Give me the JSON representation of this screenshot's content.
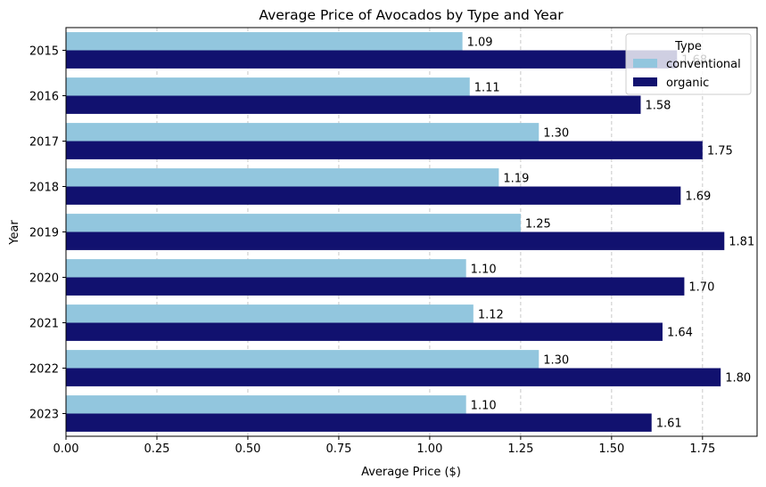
{
  "chart_data": {
    "type": "bar",
    "orientation": "horizontal",
    "title": "Average Price of Avocados by Type and Year",
    "xlabel": "Average Price ($)",
    "ylabel": "Year",
    "categories": [
      "2015",
      "2016",
      "2017",
      "2018",
      "2019",
      "2020",
      "2021",
      "2022",
      "2023"
    ],
    "series": [
      {
        "name": "conventional",
        "color": "#92c6de",
        "values": [
          1.09,
          1.11,
          1.3,
          1.19,
          1.25,
          1.1,
          1.12,
          1.3,
          1.1
        ]
      },
      {
        "name": "organic",
        "color": "#11116f",
        "values": [
          1.68,
          1.58,
          1.75,
          1.69,
          1.81,
          1.7,
          1.64,
          1.8,
          1.61
        ]
      }
    ],
    "data_labels": [
      [
        "1.09",
        "1.11",
        "1.30",
        "1.19",
        "1.25",
        "1.10",
        "1.12",
        "1.30",
        "1.10"
      ],
      [
        "1.68",
        "1.58",
        "1.75",
        "1.69",
        "1.81",
        "1.70",
        "1.64",
        "1.80",
        "1.61"
      ]
    ],
    "xlim": [
      0,
      1.9
    ],
    "xticks": [
      0.0,
      0.25,
      0.5,
      0.75,
      1.0,
      1.25,
      1.5,
      1.75
    ],
    "xtick_labels": [
      "0.00",
      "0.25",
      "0.50",
      "0.75",
      "1.00",
      "1.25",
      "1.50",
      "1.75"
    ],
    "grid": "x, dashed",
    "legend": {
      "title": "Type",
      "position": "top-right"
    }
  }
}
